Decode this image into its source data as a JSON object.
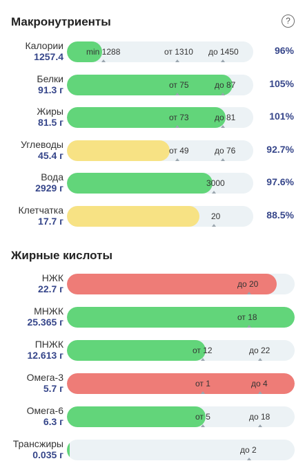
{
  "sections": {
    "macros_title": "Макронутриенты",
    "fatty_title": "Жирные кислоты"
  },
  "help_icon": "?",
  "macros": [
    {
      "name": "Калории",
      "value": "1257.4",
      "pct": "96%",
      "color": "green",
      "fill_fraction": 0.19,
      "markers": [
        "min 1288",
        "от 1310",
        "до 1450"
      ]
    },
    {
      "name": "Белки",
      "value": "91.3 г",
      "pct": "105%",
      "color": "green",
      "fill_fraction": 0.89,
      "markers": [
        "от 75",
        "до 87"
      ]
    },
    {
      "name": "Жиры",
      "value": "81.5 г",
      "pct": "101%",
      "color": "green",
      "fill_fraction": 0.85,
      "markers": [
        "от 73",
        "до 81"
      ]
    },
    {
      "name": "Углеводы",
      "value": "45.4 г",
      "pct": "92.7%",
      "color": "yellow",
      "fill_fraction": 0.55,
      "markers": [
        "от 49",
        "до 76"
      ]
    },
    {
      "name": "Вода",
      "value": "2929 г",
      "pct": "97.6%",
      "color": "green",
      "fill_fraction": 0.78,
      "markers": [
        "3000"
      ]
    },
    {
      "name": "Клетчатка",
      "value": "17.7 г",
      "pct": "88.5%",
      "color": "yellow",
      "fill_fraction": 0.71,
      "markers": [
        "20"
      ]
    }
  ],
  "fatty_acids": [
    {
      "name": "НЖК",
      "value": "22.7 г",
      "color": "red",
      "fill_fraction": 0.92,
      "markers": [
        "до 20"
      ]
    },
    {
      "name": "МНЖК",
      "value": "25.365 г",
      "color": "green",
      "fill_fraction": 1.0,
      "markers": [
        "от 18"
      ]
    },
    {
      "name": "ПНЖК",
      "value": "12.613 г",
      "color": "green",
      "fill_fraction": 0.61,
      "markers": [
        "от 12",
        "до 22"
      ]
    },
    {
      "name": "Омега-3",
      "value": "5.7 г",
      "color": "red",
      "fill_fraction": 1.0,
      "markers": [
        "от 1",
        "до 4"
      ]
    },
    {
      "name": "Омега-6",
      "value": "6.3 г",
      "color": "green",
      "fill_fraction": 0.61,
      "markers": [
        "от 5",
        "до 18"
      ]
    },
    {
      "name": "Трансжиры",
      "value": "0.035 г",
      "color": "green",
      "fill_fraction": 0.01,
      "markers": [
        "до 2"
      ]
    }
  ],
  "colors": {
    "green": "#62d57a",
    "yellow": "#f7e284",
    "red": "#ee7c77",
    "track": "#ecf2f5",
    "accent_text": "#36468a"
  }
}
